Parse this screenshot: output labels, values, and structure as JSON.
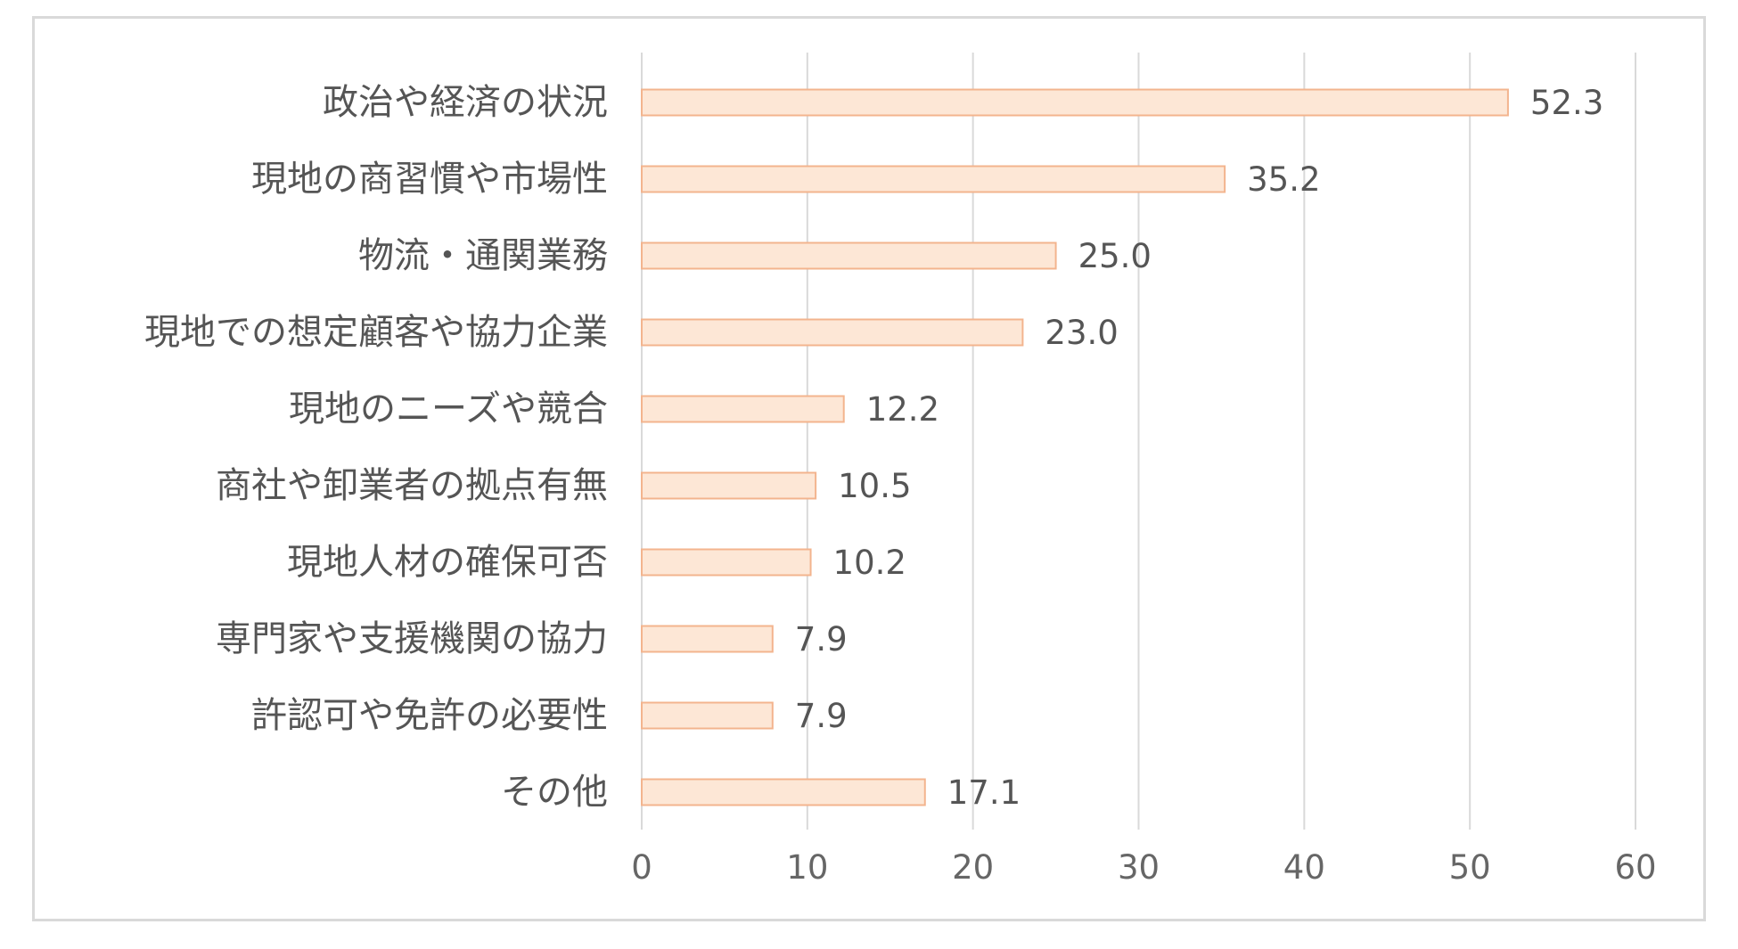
{
  "chart_data": {
    "type": "bar",
    "orientation": "horizontal",
    "categories": [
      "政治や経済の状況",
      "現地の商習慣や市場性",
      "物流・通関業務",
      "現地での想定顧客や協力企業",
      "現地のニーズや競合",
      "商社や卸業者の拠点有無",
      "現地人材の確保可否",
      "専門家や支援機関の協力",
      "許認可や免許の必要性",
      "その他"
    ],
    "values": [
      52.3,
      35.2,
      25.0,
      23.0,
      12.2,
      10.5,
      10.2,
      7.9,
      7.9,
      17.1
    ],
    "value_labels": [
      "52.3",
      "35.2",
      "25.0",
      "23.0",
      "12.2",
      "10.5",
      "10.2",
      "7.9",
      "7.9",
      "17.1"
    ],
    "xlim": [
      0,
      60
    ],
    "xticks": [
      0,
      10,
      20,
      30,
      40,
      50,
      60
    ],
    "grid": true,
    "title": "",
    "xlabel": "",
    "ylabel": "",
    "colors": {
      "bar_fill": "#fde7d6",
      "bar_stroke": "#f3b48e",
      "grid": "#d9d9d9",
      "text": "#555555"
    }
  }
}
